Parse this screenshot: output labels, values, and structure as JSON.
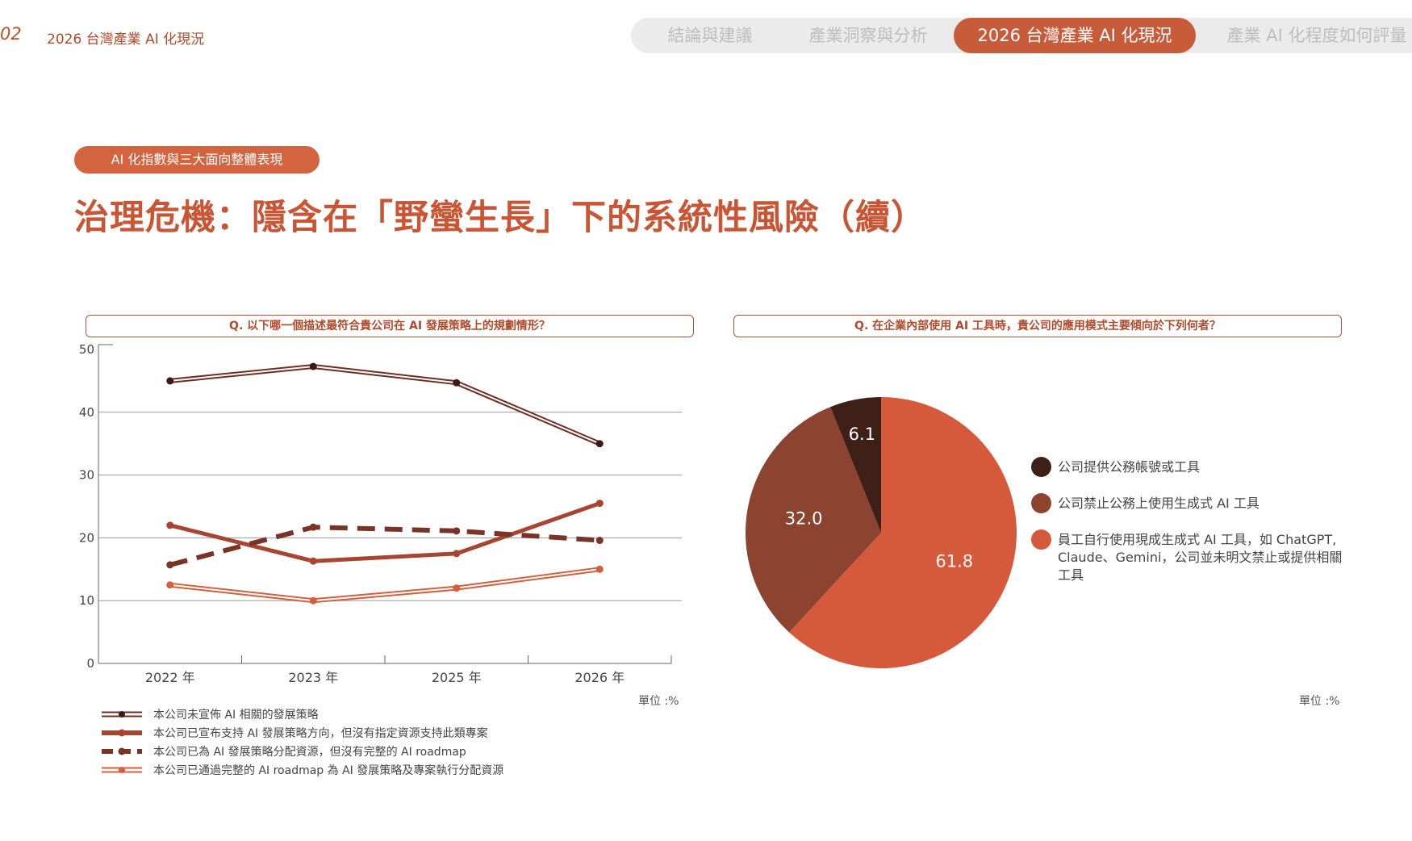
{
  "header": {
    "page_number": "02",
    "section": "2026 台灣產業 AI 化現況",
    "tabs": [
      {
        "label": "結論與建議",
        "active": false
      },
      {
        "label": "產業洞察與分析",
        "active": false
      },
      {
        "label": "2026 台灣產業 AI 化現況",
        "active": true
      },
      {
        "label": "產業 AI 化程度如何評量",
        "active": false
      }
    ]
  },
  "pill_label": "AI 化指數與三大面向整體表現",
  "title": "治理危機：隱含在「野蠻生長」下的系統性風險（續）",
  "left": {
    "question": "Q. 以下哪一個描述最符合貴公司在 AI 發展策略上的規劃情形？",
    "unit": "單位 :%"
  },
  "right": {
    "question": "Q. 在企業內部使用 AI 工具時，貴公司的應用模式主要傾向於下列何者？",
    "unit": "單位 :%"
  },
  "chart_data": [
    {
      "type": "line",
      "categories": [
        "2022 年",
        "2023 年",
        "2025 年",
        "2026 年"
      ],
      "ylim": [
        0,
        50
      ],
      "yticks": [
        0,
        10,
        20,
        30,
        40,
        50
      ],
      "series": [
        {
          "name": "本公司未宣佈 AI 相關的發展策略",
          "values": [
            45,
            47.3,
            44.7,
            35
          ],
          "color": "#6e2e24",
          "style": "double-dark"
        },
        {
          "name": "本公司已宣布支持 AI 發展策略方向，但沒有指定資源支持此類專案",
          "values": [
            22,
            16.3,
            17.5,
            25.5
          ],
          "color": "#a84531",
          "style": "thick"
        },
        {
          "name": "本公司已為 AI 發展策略分配資源，但沒有完整的 AI roadmap",
          "values": [
            15.7,
            21.7,
            21.1,
            19.6
          ],
          "color": "#7a3327",
          "style": "dashed"
        },
        {
          "name": "本公司已通過完整的 AI roadmap 為 AI 發展策略及專案執行分配資源",
          "values": [
            12.5,
            10,
            12,
            15
          ],
          "color": "#d2603e",
          "style": "double-light"
        }
      ],
      "grid": true
    },
    {
      "type": "pie",
      "slices": [
        {
          "label": "公司提供公務帳號或工具",
          "value": 6.1,
          "display": "6.1",
          "color": "#3f2019"
        },
        {
          "label": "公司禁止公務上使用生成式 AI 工具",
          "value": 32.0,
          "display": "32.0",
          "color": "#8c4330"
        },
        {
          "label": "員工自行使用現成生成式 AI 工具，如 ChatGPT, Claude、Gemini，公司並未明文禁止或提供相關工具",
          "value": 61.8,
          "display": "61.8",
          "color": "#d45a3b"
        }
      ]
    }
  ]
}
